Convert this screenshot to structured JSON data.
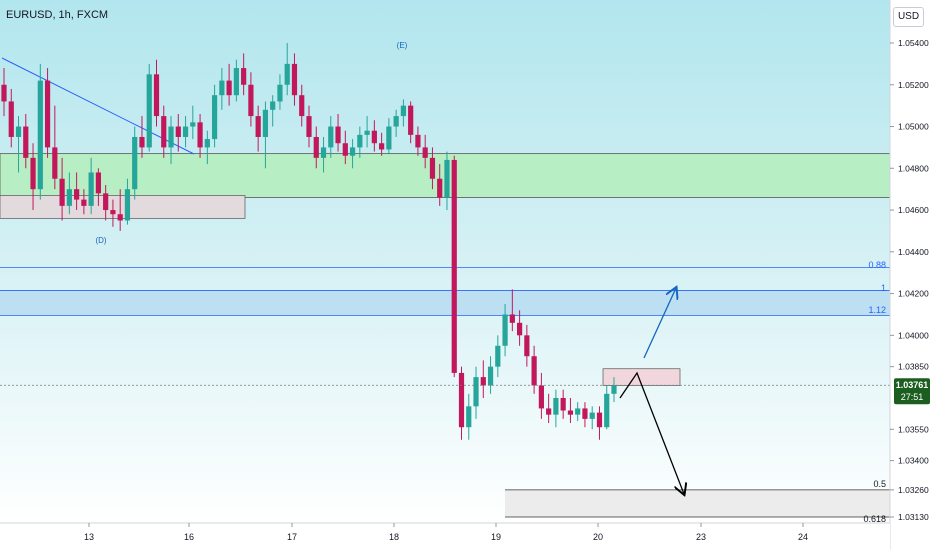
{
  "header": {
    "symbol_title": "EURUSD, 1h, FXCM",
    "currency": "USD"
  },
  "price_axis": {
    "ticks": [
      "1.05400",
      "1.05200",
      "1.05000",
      "1.04800",
      "1.04600",
      "1.04400",
      "1.04200",
      "1.04000",
      "1.03850",
      "1.03550",
      "1.03400",
      "1.03260",
      "1.03130"
    ],
    "current_price": "1.03761",
    "countdown": "27:51"
  },
  "time_axis": {
    "ticks": [
      "13",
      "16",
      "17",
      "18",
      "19",
      "20",
      "23",
      "24"
    ]
  },
  "annotations": {
    "wave_d": "(D)",
    "wave_e": "(E)"
  },
  "fib_levels": {
    "lvl_088": "0.88",
    "lvl_1": "1",
    "lvl_112": "1.12",
    "lvl_05": "0.5",
    "lvl_0618": "0.618"
  },
  "colors": {
    "bull": "#26a69a",
    "bear": "#c2185b",
    "green_zone": "#b7eec3",
    "blue_zone": "#bcdff2",
    "pink_zone": "#f1d6dc",
    "fib_line": "#2962ff",
    "arrow_up": "#1565c0",
    "arrow_down": "#000000",
    "price_label": "#1b5e20"
  },
  "chart_data": {
    "type": "candlestick",
    "symbol": "EURUSD",
    "timeframe": "1h",
    "ylim": [
      1.0308,
      1.0556
    ],
    "price_ticks": [
      1.054,
      1.052,
      1.05,
      1.048,
      1.046,
      1.044,
      1.042,
      1.04,
      1.0385,
      1.0355,
      1.034,
      1.0326,
      1.0313
    ],
    "x_ticks": [
      "13",
      "16",
      "17",
      "18",
      "19",
      "20",
      "23",
      "24"
    ],
    "current_price": 1.03761,
    "ohlc": [
      [
        1.052,
        1.0528,
        1.0505,
        1.0512
      ],
      [
        1.0512,
        1.0518,
        1.049,
        1.0495
      ],
      [
        1.0495,
        1.0505,
        1.0478,
        1.05
      ],
      [
        1.05,
        1.0506,
        1.048,
        1.0485
      ],
      [
        1.0485,
        1.0492,
        1.046,
        1.047
      ],
      [
        1.047,
        1.053,
        1.0465,
        1.0522
      ],
      [
        1.0522,
        1.0528,
        1.0485,
        1.049
      ],
      [
        1.049,
        1.051,
        1.047,
        1.0475
      ],
      [
        1.0475,
        1.0485,
        1.0455,
        1.0462
      ],
      [
        1.0462,
        1.0478,
        1.0458,
        1.047
      ],
      [
        1.047,
        1.0478,
        1.046,
        1.0465
      ],
      [
        1.0465,
        1.047,
        1.0458,
        1.0462
      ],
      [
        1.0462,
        1.0485,
        1.0458,
        1.0478
      ],
      [
        1.0478,
        1.048,
        1.0462,
        1.0468
      ],
      [
        1.0468,
        1.0472,
        1.0455,
        1.046
      ],
      [
        1.046,
        1.0465,
        1.0452,
        1.0458
      ],
      [
        1.0458,
        1.047,
        1.045,
        1.0455
      ],
      [
        1.0455,
        1.0475,
        1.0453,
        1.047
      ],
      [
        1.047,
        1.05,
        1.0465,
        1.0495
      ],
      [
        1.0495,
        1.0505,
        1.0485,
        1.049
      ],
      [
        1.049,
        1.053,
        1.0488,
        1.0525
      ],
      [
        1.0525,
        1.0532,
        1.05,
        1.0505
      ],
      [
        1.0505,
        1.051,
        1.0485,
        1.049
      ],
      [
        1.049,
        1.0505,
        1.0482,
        1.05
      ],
      [
        1.05,
        1.0506,
        1.0488,
        1.0495
      ],
      [
        1.0495,
        1.0505,
        1.049,
        1.05
      ],
      [
        1.05,
        1.051,
        1.0494,
        1.0502
      ],
      [
        1.0502,
        1.0506,
        1.0485,
        1.049
      ],
      [
        1.049,
        1.0498,
        1.0482,
        1.0494
      ],
      [
        1.0494,
        1.052,
        1.049,
        1.0515
      ],
      [
        1.0515,
        1.0528,
        1.0508,
        1.0522
      ],
      [
        1.0522,
        1.053,
        1.051,
        1.0515
      ],
      [
        1.0515,
        1.0532,
        1.0512,
        1.0528
      ],
      [
        1.0528,
        1.0535,
        1.0515,
        1.052
      ],
      [
        1.052,
        1.0526,
        1.05,
        1.0505
      ],
      [
        1.0505,
        1.051,
        1.0488,
        1.0495
      ],
      [
        1.0495,
        1.0512,
        1.048,
        1.0508
      ],
      [
        1.0508,
        1.0515,
        1.05,
        1.0512
      ],
      [
        1.0512,
        1.0525,
        1.0508,
        1.052
      ],
      [
        1.052,
        1.054,
        1.0515,
        1.053
      ],
      [
        1.053,
        1.0535,
        1.051,
        1.0515
      ],
      [
        1.0515,
        1.052,
        1.05,
        1.0505
      ],
      [
        1.0505,
        1.051,
        1.049,
        1.0495
      ],
      [
        1.0495,
        1.05,
        1.048,
        1.0485
      ],
      [
        1.0485,
        1.0495,
        1.0478,
        1.049
      ],
      [
        1.049,
        1.0505,
        1.0485,
        1.05
      ],
      [
        1.05,
        1.0506,
        1.0488,
        1.0492
      ],
      [
        1.0492,
        1.0498,
        1.0482,
        1.0486
      ],
      [
        1.0486,
        1.0494,
        1.048,
        1.049
      ],
      [
        1.049,
        1.05,
        1.0485,
        1.0496
      ],
      [
        1.0496,
        1.0505,
        1.049,
        1.0498
      ],
      [
        1.0498,
        1.0503,
        1.0488,
        1.0492
      ],
      [
        1.0492,
        1.0497,
        1.0486,
        1.0489
      ],
      [
        1.0489,
        1.0504,
        1.0487,
        1.05
      ],
      [
        1.05,
        1.0508,
        1.0495,
        1.0505
      ],
      [
        1.0505,
        1.0513,
        1.05,
        1.051
      ],
      [
        1.051,
        1.0512,
        1.0492,
        1.0496
      ],
      [
        1.0496,
        1.05,
        1.0486,
        1.049
      ],
      [
        1.049,
        1.0496,
        1.048,
        1.0485
      ],
      [
        1.0485,
        1.049,
        1.047,
        1.0475
      ],
      [
        1.0475,
        1.0482,
        1.0462,
        1.0466
      ],
      [
        1.0466,
        1.0488,
        1.046,
        1.0484
      ],
      [
        1.0484,
        1.0486,
        1.038,
        1.0382
      ],
      [
        1.0382,
        1.0385,
        1.035,
        1.0356
      ],
      [
        1.0356,
        1.0372,
        1.035,
        1.0366
      ],
      [
        1.0366,
        1.0385,
        1.036,
        1.038
      ],
      [
        1.038,
        1.0388,
        1.037,
        1.0376
      ],
      [
        1.0376,
        1.039,
        1.0372,
        1.0385
      ],
      [
        1.0385,
        1.04,
        1.038,
        1.0395
      ],
      [
        1.0395,
        1.0415,
        1.039,
        1.041
      ],
      [
        1.041,
        1.0422,
        1.0402,
        1.0406
      ],
      [
        1.0406,
        1.0412,
        1.0395,
        1.04
      ],
      [
        1.04,
        1.0405,
        1.0385,
        1.039
      ],
      [
        1.039,
        1.0395,
        1.0372,
        1.0376
      ],
      [
        1.0376,
        1.0382,
        1.036,
        1.0365
      ],
      [
        1.0365,
        1.0372,
        1.0358,
        1.0362
      ],
      [
        1.0362,
        1.0374,
        1.0356,
        1.037
      ],
      [
        1.037,
        1.0374,
        1.036,
        1.0364
      ],
      [
        1.0364,
        1.037,
        1.0358,
        1.0362
      ],
      [
        1.0362,
        1.0368,
        1.0359,
        1.0365
      ],
      [
        1.0365,
        1.0368,
        1.0356,
        1.036
      ],
      [
        1.036,
        1.0366,
        1.0355,
        1.0363
      ],
      [
        1.0363,
        1.0366,
        1.035,
        1.0356
      ],
      [
        1.0356,
        1.0376,
        1.0355,
        1.0372
      ],
      [
        1.0372,
        1.038,
        1.0368,
        1.0376
      ]
    ],
    "zones": [
      {
        "name": "supply-green",
        "from": 1.0466,
        "to": 1.0487
      },
      {
        "name": "fib-blue",
        "from": 1.04095,
        "to": 1.04215
      },
      {
        "name": "entry-pink",
        "from": 1.0376,
        "to": 1.0384
      },
      {
        "name": "target-grey",
        "from": 1.0313,
        "to": 1.0326
      },
      {
        "name": "demand-pink-left",
        "from": 1.0456,
        "to": 1.0467
      }
    ],
    "fib": [
      {
        "label": "0.88",
        "price": 1.04325
      },
      {
        "label": "1",
        "price": 1.04215
      },
      {
        "label": "1.12",
        "price": 1.04095
      },
      {
        "label": "0.5",
        "price": 1.0326
      },
      {
        "label": "0.618",
        "price": 1.0313
      }
    ]
  }
}
